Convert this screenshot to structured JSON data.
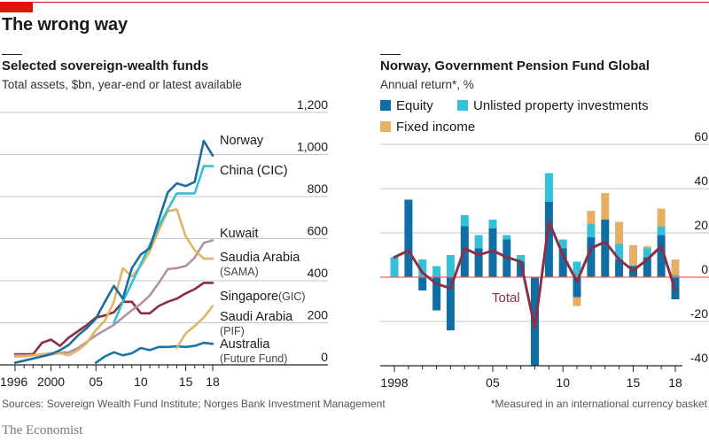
{
  "header": {
    "headline": "The wrong way",
    "brand": "The Economist"
  },
  "colors": {
    "brand_red": "#e3120b",
    "gridline": "#b9c9d6",
    "zero_line_right": "#e06666",
    "norway": "#1b6e9e",
    "china": "#34c0d6",
    "kuwait": "#b3929f",
    "saudi_sama": "#e0b464",
    "singapore": "#8c2e3f",
    "saudi_pif": "#e0b464",
    "australia": "#1b75a6",
    "equity": "#0f6ea3",
    "property": "#34c0d6",
    "fixed_income": "#e3b066",
    "total": "#8c2e47"
  },
  "chart_data": [
    {
      "type": "line",
      "title": "Selected sovereign-wealth funds",
      "subtitle": "Total assets, $bn, year-end or latest available",
      "xlabel": "",
      "ylabel": "",
      "xlim": [
        1996,
        2018
      ],
      "ylim": [
        0,
        1200
      ],
      "yticks": [
        0,
        200,
        400,
        600,
        800,
        1000,
        1200
      ],
      "ytick_labels": [
        "0",
        "200",
        "400",
        "600",
        "800",
        "1,000",
        "1,200"
      ],
      "xticks": [
        1996,
        2000,
        2005,
        2010,
        2015,
        2018
      ],
      "xtick_labels": [
        "1996",
        "2000",
        "05",
        "10",
        "15",
        "18"
      ],
      "grid": true,
      "y_axis_side": "right",
      "series": [
        {
          "key": "norway",
          "name": "Norway",
          "sublabel": "",
          "x": [
            1996,
            1997,
            1998,
            1999,
            2000,
            2001,
            2002,
            2003,
            2004,
            2005,
            2006,
            2007,
            2008,
            2009,
            2010,
            2011,
            2012,
            2013,
            2014,
            2015,
            2016,
            2017,
            2018
          ],
          "values": [
            10,
            20,
            30,
            40,
            50,
            70,
            95,
            140,
            175,
            220,
            300,
            375,
            315,
            460,
            525,
            555,
            690,
            820,
            863,
            850,
            870,
            1065,
            995
          ]
        },
        {
          "key": "china",
          "name": "China (CIC)",
          "sublabel": "",
          "x": [
            2007,
            2008,
            2009,
            2010,
            2011,
            2012,
            2013,
            2014,
            2015,
            2016,
            2017,
            2018
          ],
          "values": [
            200,
            300,
            390,
            480,
            570,
            660,
            740,
            815,
            815,
            815,
            945,
            945
          ]
        },
        {
          "key": "kuwait",
          "name": "Kuwait",
          "sublabel": "",
          "x": [
            1996,
            1997,
            1998,
            1999,
            2000,
            2001,
            2002,
            2003,
            2004,
            2005,
            2006,
            2007,
            2008,
            2009,
            2010,
            2011,
            2012,
            2013,
            2014,
            2015,
            2016,
            2017,
            2018
          ],
          "values": [
            45,
            45,
            45,
            50,
            55,
            58,
            60,
            80,
            110,
            140,
            165,
            190,
            225,
            260,
            290,
            330,
            390,
            455,
            460,
            470,
            510,
            580,
            592
          ]
        },
        {
          "key": "saudi_sama",
          "name": "Saudia Arabia",
          "sublabel": "(SAMA)",
          "x": [
            1996,
            1997,
            1998,
            1999,
            2000,
            2001,
            2002,
            2003,
            2004,
            2005,
            2006,
            2007,
            2008,
            2009,
            2010,
            2011,
            2012,
            2013,
            2014,
            2015,
            2016,
            2017,
            2018
          ],
          "values": [
            40,
            40,
            45,
            50,
            50,
            55,
            45,
            70,
            105,
            165,
            210,
            300,
            460,
            420,
            470,
            540,
            640,
            730,
            740,
            610,
            545,
            505,
            505
          ]
        },
        {
          "key": "singapore",
          "name": "Singapore",
          "sublabel": "(GIC)",
          "x": [
            1996,
            1997,
            1998,
            1999,
            2000,
            2001,
            2002,
            2003,
            2004,
            2005,
            2006,
            2007,
            2008,
            2009,
            2010,
            2011,
            2012,
            2013,
            2014,
            2015,
            2016,
            2017,
            2018
          ],
          "values": [
            50,
            50,
            50,
            105,
            120,
            90,
            130,
            160,
            190,
            225,
            235,
            250,
            300,
            300,
            245,
            245,
            280,
            300,
            315,
            340,
            360,
            390,
            390
          ]
        },
        {
          "key": "saudi_pif",
          "name": "Saudi Arabia",
          "sublabel": "(PIF)",
          "x": [
            2014,
            2015,
            2016,
            2017,
            2018
          ],
          "values": [
            80,
            150,
            185,
            225,
            280
          ]
        },
        {
          "key": "australia",
          "name": "Australia",
          "sublabel": "(Future Fund)",
          "x": [
            2005,
            2006,
            2007,
            2008,
            2009,
            2010,
            2011,
            2012,
            2013,
            2014,
            2015,
            2016,
            2017,
            2018
          ],
          "values": [
            10,
            40,
            60,
            45,
            55,
            80,
            70,
            85,
            85,
            88,
            85,
            90,
            105,
            100
          ]
        }
      ]
    },
    {
      "type": "bar",
      "stacked": true,
      "title": "Norway, Government Pension Fund Global",
      "subtitle": "Annual return*, %",
      "footnote": "*Measured in an international currency basket",
      "xlim": [
        1998,
        2018
      ],
      "ylim": [
        -40,
        60
      ],
      "yticks": [
        -40,
        -20,
        0,
        20,
        40,
        60
      ],
      "ytick_labels": [
        "-40",
        "-20",
        "0",
        "20",
        "40",
        "60"
      ],
      "xticks": [
        1998,
        2005,
        2010,
        2015,
        2018
      ],
      "xtick_labels": [
        "1998",
        "05",
        "10",
        "15",
        "18"
      ],
      "grid": true,
      "y_axis_side": "right",
      "legend": [
        {
          "key": "equity",
          "label": "Equity"
        },
        {
          "key": "property",
          "label": "Unlisted property investments"
        },
        {
          "key": "fixed_income",
          "label": "Fixed income"
        }
      ],
      "legend_position": "top-left",
      "categories": [
        1998,
        1999,
        2000,
        2001,
        2002,
        2003,
        2004,
        2005,
        2006,
        2007,
        2008,
        2009,
        2010,
        2011,
        2012,
        2013,
        2014,
        2015,
        2016,
        2017,
        2018
      ],
      "series": [
        {
          "key": "equity",
          "name": "Equity",
          "values": [
            0,
            35,
            -6,
            -15,
            -24,
            23,
            13,
            22,
            17,
            7,
            -40,
            34,
            13,
            -9,
            18,
            26,
            8,
            5,
            9,
            19,
            -10
          ]
        },
        {
          "key": "property",
          "name": "Unlisted property investments",
          "values": [
            9,
            0,
            8,
            5,
            10,
            5,
            6,
            4,
            2,
            3,
            0,
            13,
            4,
            7,
            6,
            0,
            7,
            0.5,
            4,
            4,
            1
          ]
        },
        {
          "key": "fixed_income",
          "name": "Fixed income",
          "values": [
            0,
            0,
            0,
            0,
            0,
            0,
            0,
            0,
            0,
            0,
            0,
            0,
            0,
            -4,
            6,
            12,
            10,
            9,
            1,
            8,
            7
          ]
        }
      ],
      "total_line": {
        "name": "Total",
        "values": [
          9,
          12,
          2,
          -3,
          -5,
          13,
          10,
          12,
          9,
          7,
          -23,
          25,
          10,
          -2,
          13,
          16,
          8,
          3,
          8,
          14,
          -6
        ]
      }
    }
  ],
  "footer": {
    "source_left": "Sources: Sovereign Wealth Fund Institute; Norges Bank Investment Management",
    "source_right": "*Measured in an international currency basket"
  }
}
